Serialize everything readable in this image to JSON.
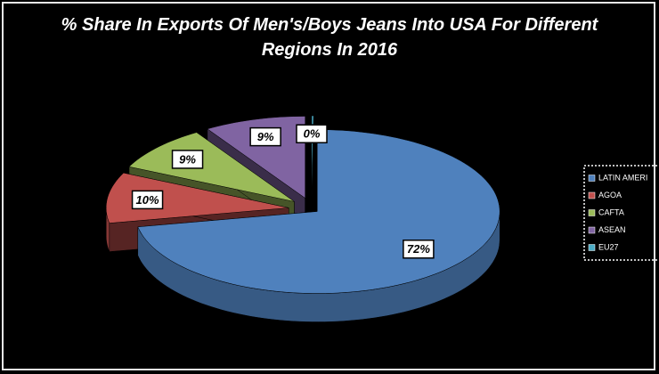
{
  "chart_data": {
    "type": "pie3d",
    "title": "% Share In Exports Of Men's/Boys Jeans Into USA For Different Regions In 2016",
    "categories": [
      "LATIN AMERI",
      "AGOA",
      "CAFTA",
      "ASEAN",
      "EU27"
    ],
    "values": [
      72,
      10,
      9,
      9,
      0
    ],
    "value_labels": [
      "72%",
      "10%",
      "9%",
      "9%",
      "0%"
    ],
    "colors": [
      "#4f81bd",
      "#c0504d",
      "#9bbb59",
      "#8064a2",
      "#4bacc6"
    ],
    "legend": "right"
  }
}
